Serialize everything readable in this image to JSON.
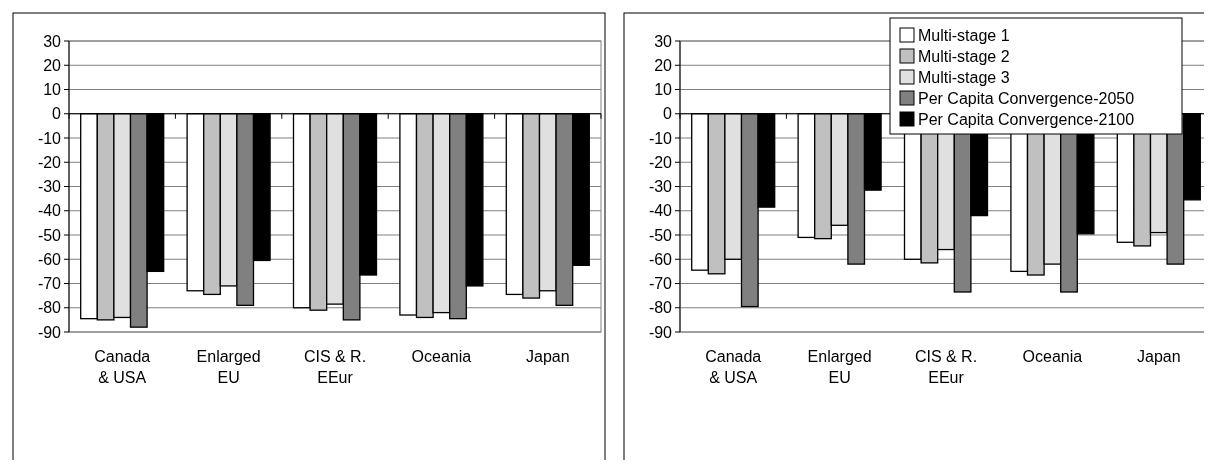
{
  "chart_data": [
    {
      "type": "bar",
      "categories": [
        "Canada\n& USA",
        "Enlarged\nEU",
        "CIS & R.\nEEur",
        "Oceania",
        "Japan"
      ],
      "series": [
        {
          "color": "#ffffff",
          "values": [
            -84.5,
            -73,
            -80,
            -83,
            -74.5
          ]
        },
        {
          "color": "#c0c0c0",
          "values": [
            -85,
            -74.5,
            -81,
            -84,
            -76
          ]
        },
        {
          "color": "#e0e0e0",
          "values": [
            -84,
            -71,
            -78.5,
            -82,
            -73
          ]
        },
        {
          "color": "#808080",
          "values": [
            -88,
            -79,
            -85,
            -84.5,
            -79
          ]
        },
        {
          "color": "#000000",
          "values": [
            -65,
            -60.5,
            -66.5,
            -71,
            -62.5
          ]
        }
      ],
      "ylim": [
        -90,
        30
      ],
      "yticks": [
        -90,
        -80,
        -70,
        -60,
        -50,
        -40,
        -30,
        -20,
        -10,
        0,
        10,
        20,
        30
      ],
      "grid": "y",
      "legend": false
    },
    {
      "type": "bar",
      "categories": [
        "Canada\n& USA",
        "Enlarged\nEU",
        "CIS & R.\nEEur",
        "Oceania",
        "Japan"
      ],
      "series": [
        {
          "name": "Multi-stage 1",
          "color": "#ffffff",
          "values": [
            -64.5,
            -51,
            -60,
            -65,
            -53
          ]
        },
        {
          "name": "Multi-stage 2",
          "color": "#c0c0c0",
          "values": [
            -66,
            -51.5,
            -61.5,
            -66.5,
            -54.5
          ]
        },
        {
          "name": "Multi-stage 3",
          "color": "#e0e0e0",
          "values": [
            -60,
            -46,
            -56,
            -62,
            -49
          ]
        },
        {
          "name": "Per Capita Convergence-2050",
          "color": "#808080",
          "values": [
            -79.5,
            -62,
            -73.5,
            -73.5,
            -62
          ]
        },
        {
          "name": "Per Capita Convergence-2100",
          "color": "#000000",
          "values": [
            -38.5,
            -31.5,
            -42,
            -49.5,
            -35.5
          ]
        }
      ],
      "ylim": [
        -90,
        30
      ],
      "yticks": [
        -90,
        -80,
        -70,
        -60,
        -50,
        -40,
        -30,
        -20,
        -10,
        0,
        10,
        20,
        30
      ],
      "grid": "y",
      "legend": "top right"
    }
  ]
}
